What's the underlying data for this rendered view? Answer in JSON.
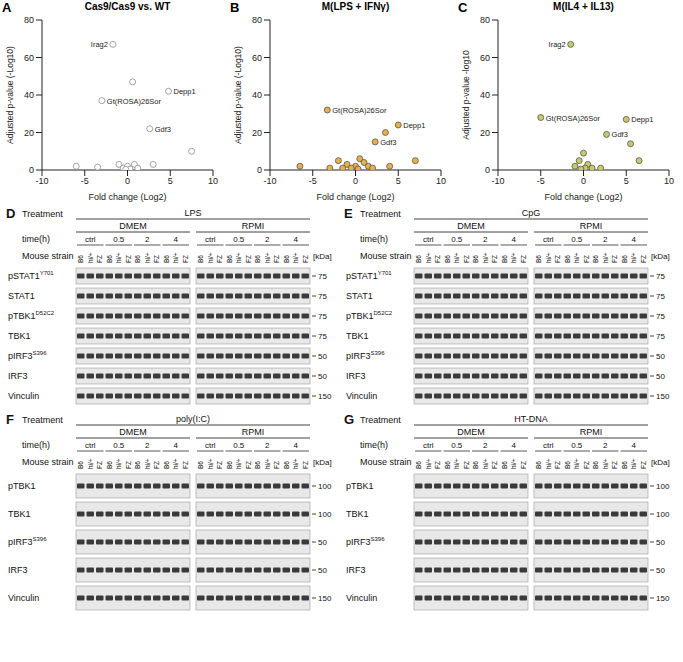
{
  "chart_data": [
    {
      "panel": "A",
      "type": "scatter",
      "title": "Cas9/Cas9 vs. WT",
      "x_label": "Fold change (Log2)",
      "y_label": "Adjusted p-value (-Log10)",
      "color": "#8c8c8c",
      "marker": "circle_open",
      "x": [
        -1.7,
        0.6,
        -3,
        4.8,
        2.6,
        7.5,
        -3.5,
        -1,
        -0.5,
        0,
        0.3,
        0.8,
        1.2,
        -0.2,
        3,
        -6
      ],
      "values": [
        67,
        47,
        37,
        42,
        22,
        10,
        1.5,
        3,
        1,
        2,
        0.5,
        3,
        1,
        0.3,
        3,
        2
      ],
      "point_labels": [
        "Irag2",
        null,
        "Gt(ROSA)26Sor",
        "Depp1",
        "Gdf3",
        null,
        null,
        null,
        null,
        null,
        null,
        null,
        null,
        null,
        null,
        null
      ],
      "xlim": [
        -10,
        10
      ],
      "xticks": [
        -10,
        -5,
        0,
        5,
        10
      ],
      "ylim": [
        0,
        80
      ],
      "yticks": [
        0,
        20,
        40,
        60,
        80
      ],
      "grid": false
    },
    {
      "panel": "B",
      "type": "scatter",
      "title": "M(LPS + IFNγ)",
      "x_label": "Fold change (Log2)",
      "y_label": "Adjusted p-value (-Log10)",
      "color": "#e8b04a",
      "marker": "circle",
      "x": [
        -3.3,
        5,
        2.3,
        3.5,
        7,
        -6.5,
        -2,
        -1,
        0,
        0.5,
        1,
        -0.5,
        0.3,
        1.5,
        -1.5,
        2,
        4,
        -3
      ],
      "values": [
        32,
        24,
        15,
        20,
        5,
        2,
        5,
        3,
        2,
        6,
        4,
        1,
        0.5,
        2,
        1,
        1,
        2,
        1
      ],
      "point_labels": [
        "Gt(ROSA)26Sor",
        "Depp1",
        "Gdf3",
        null,
        null,
        null,
        null,
        null,
        null,
        null,
        null,
        null,
        null,
        null,
        null,
        null,
        null,
        null
      ],
      "xlim": [
        -10,
        10
      ],
      "xticks": [
        -10,
        -5,
        0,
        5,
        10
      ],
      "ylim": [
        0,
        80
      ],
      "yticks": [
        0,
        20,
        40,
        60,
        80
      ],
      "grid": false
    },
    {
      "panel": "C",
      "type": "scatter",
      "title": "M(IL4 + IL13)",
      "x_label": "Fold change (Log2)",
      "y_label": "Adjusted p-value -log10",
      "color": "#c9c96b",
      "marker": "circle",
      "x": [
        -1.5,
        -5,
        5,
        2.7,
        5.5,
        6.5,
        0,
        -0.5,
        0.5,
        -1,
        1,
        0.2,
        -0.3,
        2
      ],
      "values": [
        67,
        28,
        27,
        19,
        14,
        5,
        9,
        5,
        3,
        2,
        1,
        1,
        0.5,
        1
      ],
      "point_labels": [
        "Irag2",
        "Gt(ROSA)26Sor",
        "Depp1",
        "Gdf3",
        null,
        null,
        null,
        null,
        null,
        null,
        null,
        null,
        null,
        null
      ],
      "xlim": [
        -10,
        10
      ],
      "xticks": [
        -10,
        -5,
        0,
        5,
        10
      ],
      "ylim": [
        0,
        80
      ],
      "yticks": [
        0,
        20,
        40,
        60,
        80
      ],
      "grid": false
    }
  ],
  "blots": [
    {
      "panel": "D",
      "treatment_label": "Treatment",
      "treatment": "LPS",
      "media": [
        "DMEM",
        "RPMI"
      ],
      "time_label": "time(h)",
      "times": [
        "ctrl",
        "0.5",
        "2",
        "4"
      ],
      "strain_label": "Mouse strain",
      "strains": [
        "B6",
        "hi/+",
        "FZ"
      ],
      "kda_label": "[kDa]",
      "rows": [
        {
          "name": "pSTAT1",
          "site": "Y701",
          "kda": 75
        },
        {
          "name": "STAT1",
          "kda": 75
        },
        {
          "name": "pTBK1",
          "site": "D52C2",
          "kda": 75
        },
        {
          "name": "TBK1",
          "kda": 75
        },
        {
          "name": "pIRF3",
          "site": "S396",
          "kda": 50
        },
        {
          "name": "IRF3",
          "kda": 50
        },
        {
          "name": "Vinculin",
          "kda": 150
        }
      ]
    },
    {
      "panel": "E",
      "treatment_label": "Treatment",
      "treatment": "CpG",
      "media": [
        "DMEM",
        "RPMI"
      ],
      "time_label": "time(h)",
      "times": [
        "ctrl",
        "0.5",
        "2",
        "4"
      ],
      "strain_label": "Mouse strain",
      "strains": [
        "B6",
        "hi/+",
        "FZ"
      ],
      "kda_label": "[kDa]",
      "rows": [
        {
          "name": "pSTAT1",
          "site": "Y701",
          "kda": 75
        },
        {
          "name": "STAT1",
          "kda": 75
        },
        {
          "name": "pTBK1",
          "site": "D52C2",
          "kda": 75
        },
        {
          "name": "TBK1",
          "kda": 75
        },
        {
          "name": "pIRF3",
          "site": "S396",
          "kda": 50
        },
        {
          "name": "IRF3",
          "kda": 50
        },
        {
          "name": "Vinculin",
          "kda": 150
        }
      ]
    },
    {
      "panel": "F",
      "treatment_label": "Treatment",
      "treatment": "poly(I:C)",
      "media": [
        "DMEM",
        "RPMI"
      ],
      "time_label": "time(h)",
      "times": [
        "ctrl",
        "0.5",
        "2",
        "4"
      ],
      "strain_label": "Mouse strain",
      "strains": [
        "B6",
        "hi/+",
        "FZ"
      ],
      "kda_label": "[kDa]",
      "rows": [
        {
          "name": "pTBK1",
          "kda": 100
        },
        {
          "name": "TBK1",
          "kda": 100
        },
        {
          "name": "pIRF3",
          "site": "S396",
          "kda": 50
        },
        {
          "name": "IRF3",
          "kda": 50
        },
        {
          "name": "Vinculin",
          "kda": 150
        }
      ]
    },
    {
      "panel": "G",
      "treatment_label": "Treatment",
      "treatment": "HT-DNA",
      "media": [
        "DMEM",
        "RPMI"
      ],
      "time_label": "time(h)",
      "times": [
        "ctrl",
        "0.5",
        "2",
        "4"
      ],
      "strain_label": "Mouse strain",
      "strains": [
        "B6",
        "hi/+",
        "FZ"
      ],
      "kda_label": "[kDa]",
      "rows": [
        {
          "name": "pTBK1",
          "kda": 100
        },
        {
          "name": "TBK1",
          "kda": 100
        },
        {
          "name": "pIRF3",
          "site": "S396",
          "kda": 50
        },
        {
          "name": "IRF3",
          "kda": 50
        },
        {
          "name": "Vinculin",
          "kda": 150
        }
      ]
    }
  ]
}
